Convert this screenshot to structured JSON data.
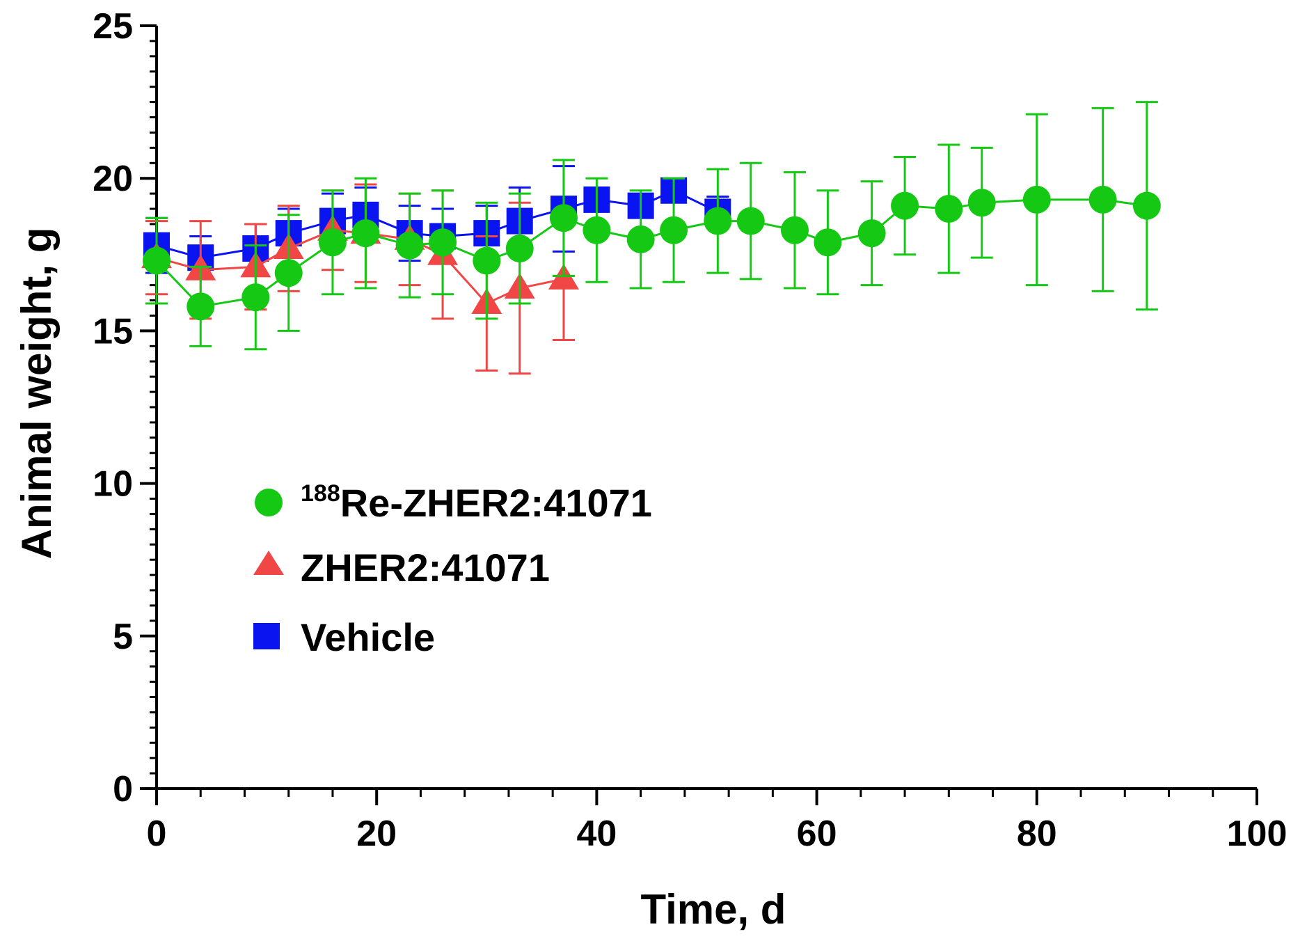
{
  "chart_data": {
    "type": "line",
    "title": "",
    "xlabel": "Time, d",
    "ylabel": "Animal weight, g",
    "xlim": [
      0,
      100
    ],
    "ylim": [
      0,
      25
    ],
    "xticks": [
      0,
      20,
      40,
      60,
      80,
      100
    ],
    "yticks": [
      0,
      5,
      10,
      15,
      20,
      25
    ],
    "xtick_labels": [
      "0",
      "20",
      "40",
      "60",
      "80",
      "100"
    ],
    "ytick_labels": [
      "0",
      "5",
      "10",
      "15",
      "20",
      "25"
    ],
    "grid": false,
    "legend_position": "center-left",
    "series": [
      {
        "name": "Vehicle",
        "marker": "square",
        "color": "#0a14f0",
        "x": [
          0,
          4,
          9,
          12,
          16,
          19,
          23,
          26,
          30,
          33,
          37,
          40,
          44,
          47,
          51
        ],
        "y": [
          17.8,
          17.4,
          17.7,
          18.2,
          18.6,
          18.8,
          18.2,
          18.1,
          18.2,
          18.6,
          19.0,
          19.3,
          19.1,
          19.6,
          18.9
        ],
        "err": [
          0.9,
          0.7,
          0.8,
          0.8,
          0.9,
          0.9,
          0.9,
          0.9,
          0.9,
          1.1,
          1.4,
          0.0,
          0.0,
          0.3,
          0.5
        ]
      },
      {
        "name": "ZHER2:41071",
        "marker": "triangle",
        "color": "#f04646",
        "x": [
          0,
          4,
          9,
          12,
          16,
          19,
          23,
          26,
          30,
          33,
          37
        ],
        "y": [
          17.4,
          17.0,
          17.1,
          17.7,
          18.3,
          18.2,
          18.0,
          17.5,
          15.9,
          16.4,
          16.7
        ],
        "err": [
          1.2,
          1.6,
          1.4,
          1.4,
          1.3,
          1.6,
          1.5,
          2.1,
          2.2,
          2.8,
          2.0
        ]
      },
      {
        "name_sup": "188",
        "name": "Re-ZHER2:41071",
        "marker": "circle",
        "color": "#14c814",
        "x": [
          0,
          4,
          9,
          12,
          16,
          19,
          23,
          26,
          30,
          33,
          37,
          40,
          44,
          47,
          51,
          54,
          58,
          61,
          65,
          68,
          72,
          75,
          80,
          86,
          90
        ],
        "y": [
          17.3,
          15.8,
          16.1,
          16.9,
          17.9,
          18.2,
          17.8,
          17.9,
          17.3,
          17.7,
          18.7,
          18.3,
          18.0,
          18.3,
          18.6,
          18.6,
          18.3,
          17.9,
          18.2,
          19.1,
          19.0,
          19.2,
          19.3,
          19.3,
          19.1
        ],
        "err": [
          1.4,
          1.3,
          1.7,
          1.9,
          1.7,
          1.8,
          1.7,
          1.7,
          1.9,
          1.8,
          1.9,
          1.7,
          1.6,
          1.7,
          1.7,
          1.9,
          1.9,
          1.7,
          1.7,
          1.6,
          2.1,
          1.8,
          2.8,
          3.0,
          3.4
        ]
      }
    ]
  }
}
